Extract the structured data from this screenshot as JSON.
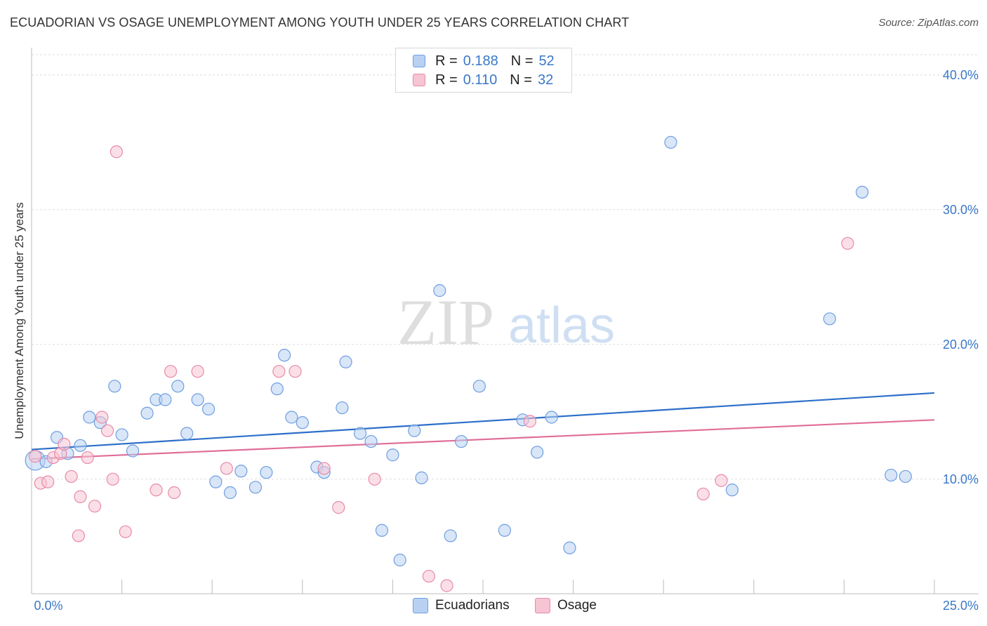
{
  "title": "ECUADORIAN VS OSAGE UNEMPLOYMENT AMONG YOUTH UNDER 25 YEARS CORRELATION CHART",
  "source": "Source: ZipAtlas.com",
  "watermark": {
    "zip": "ZIP",
    "atlas": "atlas"
  },
  "legend": {
    "r_label": "R =",
    "n_label": "N =",
    "rows": [
      {
        "name": "Ecuadorians",
        "r": "0.188",
        "n": "52",
        "fill": "#b8d1f2",
        "stroke": "#6f9ee0"
      },
      {
        "name": "Osage",
        "r": "0.110",
        "n": "32",
        "fill": "#f7c4d3",
        "stroke": "#e88aa8"
      }
    ]
  },
  "colors": {
    "blue_line": "#2c6fc9",
    "pink_line": "#e06d98",
    "blue_fill": "#b8d1f2",
    "blue_stroke": "#6f9ee0",
    "pink_fill": "#f7c4d3",
    "pink_stroke": "#e88aa8",
    "grid": "#dddddd",
    "axis_text": "#3a78c8"
  },
  "chart_data": {
    "type": "scatter",
    "title": "ECUADORIAN VS OSAGE UNEMPLOYMENT AMONG YOUTH UNDER 25 YEARS CORRELATION CHART",
    "xlabel": "",
    "ylabel": "Unemployment Among Youth under 25 years",
    "xlim": [
      0,
      25
    ],
    "ylim": [
      1.5,
      41.5
    ],
    "x_tick_labels": [
      "0.0%",
      "25.0%"
    ],
    "y_ticks": [
      10,
      20,
      30,
      40
    ],
    "y_tick_labels": [
      "10.0%",
      "20.0%",
      "30.0%",
      "40.0%"
    ],
    "grid": true,
    "legend_position": "bottom-center",
    "series": [
      {
        "name": "Ecuadorians",
        "trend": [
          [
            0,
            12.2
          ],
          [
            25,
            16.4
          ]
        ],
        "points": [
          [
            0.1,
            11.4
          ],
          [
            0.4,
            11.3
          ],
          [
            0.7,
            13.1
          ],
          [
            1.0,
            11.9
          ],
          [
            1.35,
            12.5
          ],
          [
            1.6,
            14.6
          ],
          [
            1.9,
            14.2
          ],
          [
            2.3,
            16.9
          ],
          [
            2.5,
            13.3
          ],
          [
            2.8,
            12.1
          ],
          [
            3.2,
            14.9
          ],
          [
            3.45,
            15.9
          ],
          [
            3.7,
            15.9
          ],
          [
            4.05,
            16.9
          ],
          [
            4.3,
            13.4
          ],
          [
            4.6,
            15.9
          ],
          [
            4.9,
            15.2
          ],
          [
            5.1,
            9.8
          ],
          [
            5.5,
            9.0
          ],
          [
            5.8,
            10.6
          ],
          [
            6.2,
            9.4
          ],
          [
            6.5,
            10.5
          ],
          [
            6.8,
            16.7
          ],
          [
            7.0,
            19.2
          ],
          [
            7.2,
            14.6
          ],
          [
            7.5,
            14.2
          ],
          [
            7.9,
            10.9
          ],
          [
            8.1,
            10.5
          ],
          [
            8.6,
            15.3
          ],
          [
            8.7,
            18.7
          ],
          [
            9.1,
            13.4
          ],
          [
            9.4,
            12.8
          ],
          [
            9.7,
            6.2
          ],
          [
            10.0,
            11.8
          ],
          [
            10.2,
            4.0
          ],
          [
            10.6,
            13.6
          ],
          [
            10.8,
            10.1
          ],
          [
            11.3,
            24.0
          ],
          [
            11.6,
            5.8
          ],
          [
            11.9,
            12.8
          ],
          [
            12.4,
            16.9
          ],
          [
            13.1,
            6.2
          ],
          [
            13.6,
            14.4
          ],
          [
            14.0,
            12.0
          ],
          [
            14.4,
            14.6
          ],
          [
            14.9,
            4.9
          ],
          [
            17.7,
            35.0
          ],
          [
            19.4,
            9.2
          ],
          [
            22.1,
            21.9
          ],
          [
            23.0,
            31.3
          ],
          [
            23.8,
            10.3
          ],
          [
            24.2,
            10.2
          ]
        ]
      },
      {
        "name": "Osage",
        "trend": [
          [
            0,
            11.5
          ],
          [
            25,
            14.4
          ]
        ],
        "points": [
          [
            0.1,
            11.7
          ],
          [
            0.25,
            9.7
          ],
          [
            0.45,
            9.8
          ],
          [
            0.6,
            11.6
          ],
          [
            0.8,
            11.9
          ],
          [
            0.9,
            12.6
          ],
          [
            1.1,
            10.2
          ],
          [
            1.3,
            5.8
          ],
          [
            1.35,
            8.7
          ],
          [
            1.55,
            11.6
          ],
          [
            1.75,
            8.0
          ],
          [
            1.95,
            14.6
          ],
          [
            2.1,
            13.6
          ],
          [
            2.25,
            10.0
          ],
          [
            2.35,
            34.3
          ],
          [
            2.6,
            6.1
          ],
          [
            3.45,
            9.2
          ],
          [
            3.85,
            18.0
          ],
          [
            3.95,
            9.0
          ],
          [
            4.6,
            18.0
          ],
          [
            5.4,
            10.8
          ],
          [
            6.85,
            18.0
          ],
          [
            7.3,
            18.0
          ],
          [
            8.1,
            10.8
          ],
          [
            8.5,
            7.9
          ],
          [
            9.5,
            10.0
          ],
          [
            11.0,
            2.8
          ],
          [
            11.5,
            2.1
          ],
          [
            13.8,
            14.3
          ],
          [
            18.6,
            8.9
          ],
          [
            19.1,
            9.9
          ],
          [
            22.6,
            27.5
          ]
        ]
      }
    ]
  }
}
